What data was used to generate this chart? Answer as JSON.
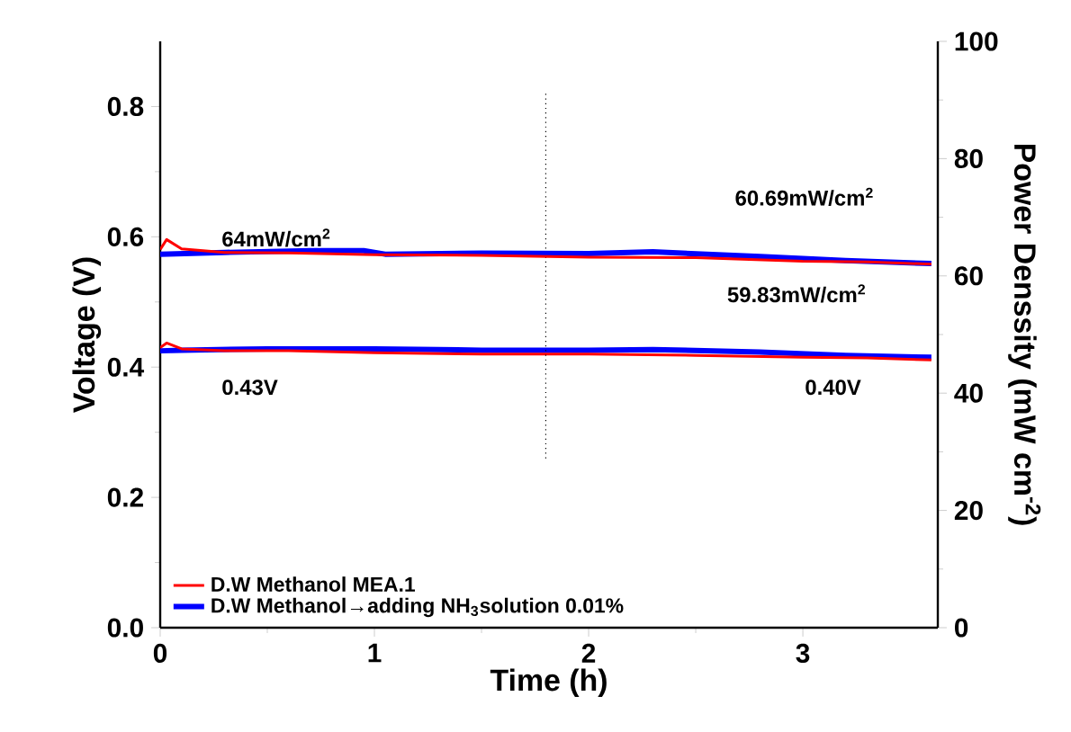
{
  "chart_data": {
    "type": "line",
    "xlabel": "Time (h)",
    "ylabel": "Voltage (V)",
    "y2label": "Power Denssity (mW cm$^{-2}$)",
    "xlim": [
      0,
      3.63
    ],
    "xticks": [
      0,
      1,
      2,
      3
    ],
    "ylim": [
      0,
      0.9
    ],
    "yticks": [
      {
        "value": 0,
        "label": "0.0"
      },
      0.2,
      0.4,
      0.6,
      0.8
    ],
    "y2lim": [
      0,
      100
    ],
    "y2ticks": [
      0,
      20,
      40,
      60,
      80,
      100
    ],
    "legend": "bottom left",
    "marker": "none",
    "line_style": "solid",
    "grid": false,
    "series": [
      {
        "name": "D.W Methanol MEA.1",
        "color": "#ff0000",
        "x": [
          0,
          0.03,
          0.1,
          0.3,
          0.6,
          1.0,
          1.5,
          2.0,
          2.5,
          3.0,
          3.3,
          3.6
        ],
        "values": [
          0.43,
          0.437,
          0.428,
          0.425,
          0.425,
          0.422,
          0.42,
          0.42,
          0.418,
          0.415,
          0.414,
          0.411
        ]
      },
      {
        "name": "D.W Methanol→adding NH$_{3}$solution 0.01%",
        "color": "#0000ff",
        "x": [
          0,
          0.1,
          0.5,
          1.0,
          1.5,
          2.0,
          2.3,
          2.8,
          3.2,
          3.6
        ],
        "values": [
          0.425,
          0.426,
          0.428,
          0.428,
          0.426,
          0.426,
          0.427,
          0.423,
          0.418,
          0.415
        ]
      },
      {
        "color": "#ff0000",
        "axis": "y2",
        "x": [
          0,
          0.03,
          0.1,
          0.3,
          0.6,
          1.0,
          1.5,
          2.0,
          2.5,
          3.0,
          3.3,
          3.6
        ],
        "values": [
          64.5,
          66.2,
          64.6,
          64.0,
          63.9,
          63.6,
          63.5,
          63.2,
          63.1,
          62.5,
          62.4,
          62.0
        ]
      },
      {
        "color": "#0000ff",
        "axis": "y2",
        "x": [
          0,
          0.3,
          0.7,
          0.95,
          1.05,
          1.5,
          2.0,
          2.3,
          2.8,
          3.2,
          3.6
        ],
        "values": [
          63.7,
          64.0,
          64.3,
          64.3,
          63.7,
          63.9,
          63.8,
          64.1,
          63.3,
          62.6,
          62.1
        ]
      }
    ],
    "ref_lines": [
      {
        "axis": "x",
        "value": 1.8,
        "color": "#000000",
        "line_style": "dotted"
      }
    ],
    "annotations": [
      "64mW/cm$^{2}$",
      "60.69mW/cm$^{2}$",
      "59.83mW/cm$^{2}$",
      "0.43V",
      "0.40V"
    ]
  }
}
